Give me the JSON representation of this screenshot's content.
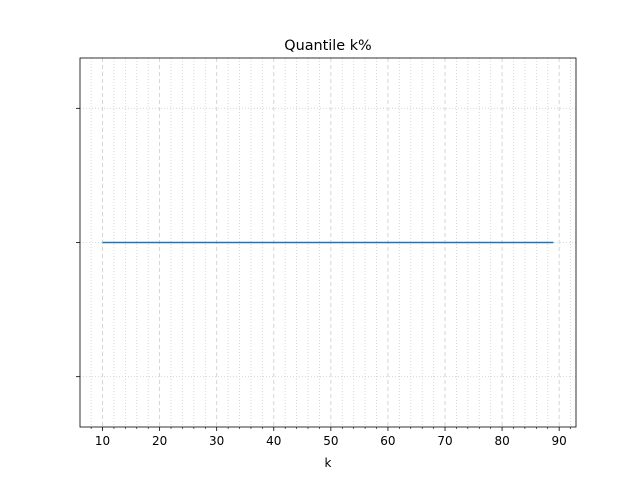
{
  "chart_data": {
    "type": "line",
    "title": "Quantile k%",
    "xlabel": "k",
    "ylabel": "",
    "xlim": [
      6.05,
      92.95
    ],
    "ylim": [
      -0.055,
      0.055
    ],
    "x_major_ticks": [
      10,
      20,
      30,
      40,
      50,
      60,
      70,
      80,
      90
    ],
    "x_tick_labels": [
      "10",
      "20",
      "30",
      "40",
      "50",
      "60",
      "70",
      "80",
      "90"
    ],
    "x_minor_step": 2,
    "y_ticks": [
      -0.04,
      0,
      0.04
    ],
    "y_tick_labels_visible": false,
    "grid": true,
    "line_color": "#1f77b4",
    "series": [
      {
        "x_start": 10,
        "x_end": 89,
        "y": 0
      }
    ]
  }
}
